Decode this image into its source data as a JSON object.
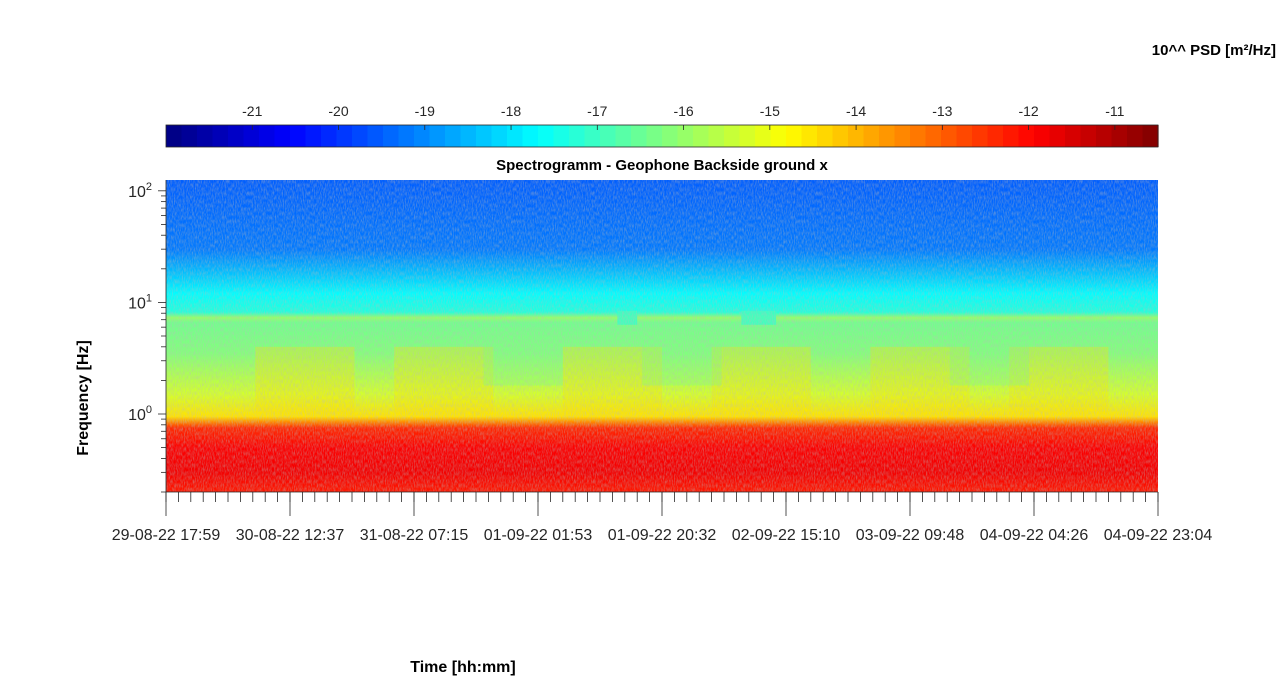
{
  "chart_data": {
    "type": "heatmap",
    "title": "Spectrogramm - Geophone Backside ground x",
    "xlabel": "Time [hh:mm]",
    "ylabel": "Frequency [Hz]",
    "y_scale": "log",
    "ylim": [
      0.2,
      125
    ],
    "y_ticks": [
      {
        "exp": "0",
        "value": 1
      },
      {
        "exp": "1",
        "value": 10
      },
      {
        "exp": "2",
        "value": 100
      }
    ],
    "x_ticks": [
      "29-08-22  17:59",
      "30-08-22  12:37",
      "31-08-22  07:15",
      "01-09-22  01:53",
      "01-09-22  20:32",
      "02-09-22  15:10",
      "03-09-22  09:48",
      "04-09-22  04:26",
      "04-09-22  23:04"
    ],
    "colorbar": {
      "label": "10^^ PSD [m²/Hz]",
      "range": [
        -22,
        -10.5
      ],
      "ticks": [
        "-21",
        "-20",
        "-19",
        "-18",
        "-17",
        "-16",
        "-15",
        "-14",
        "-13",
        "-12",
        "-11"
      ],
      "colormap": "jet",
      "levels": 64
    },
    "features": {
      "low_band_hz": [
        0.2,
        0.75
      ],
      "low_band_psd": -12,
      "mid_band_hz": [
        0.75,
        7
      ],
      "mid_band_psd": -15,
      "line_hz": 7.3,
      "line_psd": -16,
      "high_band_hz": [
        10,
        125
      ],
      "high_band_psd": -19.5
    }
  }
}
